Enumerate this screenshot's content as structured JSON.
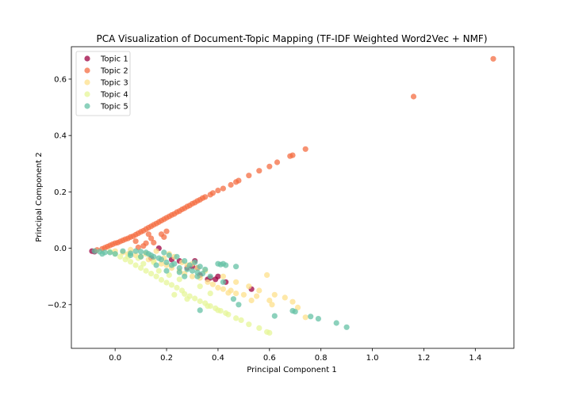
{
  "chart_data": {
    "type": "scatter",
    "title": "PCA Visualization of Document-Topic Mapping (TF-IDF Weighted Word2Vec + NMF)",
    "xlabel": "Principal Component 1",
    "ylabel": "Principal Component 2",
    "xlim": [
      -0.17,
      1.55
    ],
    "ylim": [
      -0.355,
      0.715
    ],
    "xticks": [
      0.0,
      0.2,
      0.4,
      0.6,
      0.8,
      1.0,
      1.2,
      1.4
    ],
    "xtick_labels": [
      "0.0",
      "0.2",
      "0.4",
      "0.6",
      "0.8",
      "1.0",
      "1.2",
      "1.4"
    ],
    "yticks": [
      -0.2,
      0.0,
      0.2,
      0.4,
      0.6
    ],
    "ytick_labels": [
      "−0.2",
      "0.0",
      "0.2",
      "0.4",
      "0.6"
    ],
    "grid": false,
    "legend_position": "top-left",
    "series": [
      {
        "name": "Topic 1",
        "color": "#9e0142",
        "points": [
          [
            -0.09,
            -0.01
          ],
          [
            -0.08,
            -0.012
          ],
          [
            0.17,
            0.0
          ],
          [
            0.14,
            -0.035
          ],
          [
            0.25,
            -0.045
          ],
          [
            0.3,
            -0.065
          ],
          [
            0.32,
            -0.07
          ],
          [
            0.33,
            -0.095
          ],
          [
            0.37,
            -0.105
          ],
          [
            0.4,
            -0.1
          ],
          [
            0.43,
            -0.12
          ],
          [
            0.39,
            -0.11
          ],
          [
            0.36,
            -0.11
          ],
          [
            0.53,
            -0.145
          ],
          [
            0.31,
            -0.045
          ],
          [
            0.28,
            -0.07
          ],
          [
            0.22,
            -0.04
          ]
        ]
      },
      {
        "name": "Topic 2",
        "color": "#f46d43",
        "points": [
          [
            1.47,
            0.672
          ],
          [
            1.16,
            0.538
          ],
          [
            0.74,
            0.352
          ],
          [
            0.69,
            0.33
          ],
          [
            0.68,
            0.327
          ],
          [
            0.63,
            0.305
          ],
          [
            0.6,
            0.29
          ],
          [
            0.56,
            0.275
          ],
          [
            0.52,
            0.258
          ],
          [
            0.48,
            0.24
          ],
          [
            0.47,
            0.235
          ],
          [
            0.45,
            0.225
          ],
          [
            0.42,
            0.212
          ],
          [
            0.4,
            0.205
          ],
          [
            0.38,
            0.196
          ],
          [
            0.37,
            0.19
          ],
          [
            0.35,
            0.182
          ],
          [
            0.34,
            0.178
          ],
          [
            0.33,
            0.172
          ],
          [
            0.32,
            0.168
          ],
          [
            0.31,
            0.162
          ],
          [
            0.3,
            0.158
          ],
          [
            0.29,
            0.152
          ],
          [
            0.28,
            0.148
          ],
          [
            0.27,
            0.142
          ],
          [
            0.26,
            0.138
          ],
          [
            0.25,
            0.132
          ],
          [
            0.24,
            0.128
          ],
          [
            0.23,
            0.122
          ],
          [
            0.22,
            0.118
          ],
          [
            0.21,
            0.113
          ],
          [
            0.2,
            0.108
          ],
          [
            0.19,
            0.103
          ],
          [
            0.18,
            0.098
          ],
          [
            0.17,
            0.093
          ],
          [
            0.16,
            0.088
          ],
          [
            0.15,
            0.083
          ],
          [
            0.14,
            0.078
          ],
          [
            0.13,
            0.073
          ],
          [
            0.12,
            0.068
          ],
          [
            0.11,
            0.062
          ],
          [
            0.1,
            0.058
          ],
          [
            0.09,
            0.053
          ],
          [
            0.08,
            0.048
          ],
          [
            0.07,
            0.043
          ],
          [
            0.06,
            0.04
          ],
          [
            0.05,
            0.035
          ],
          [
            0.04,
            0.032
          ],
          [
            0.03,
            0.028
          ],
          [
            0.02,
            0.024
          ],
          [
            0.01,
            0.02
          ],
          [
            0.0,
            0.018
          ],
          [
            -0.01,
            0.014
          ],
          [
            -0.02,
            0.01
          ],
          [
            -0.03,
            0.006
          ],
          [
            -0.04,
            0.002
          ],
          [
            -0.05,
            -0.002
          ],
          [
            -0.07,
            -0.006
          ],
          [
            0.2,
            0.06
          ],
          [
            0.19,
            0.04
          ],
          [
            0.14,
            0.035
          ],
          [
            0.15,
            0.02
          ],
          [
            0.12,
            0.018
          ],
          [
            0.11,
            0.008
          ],
          [
            0.09,
            0.003
          ],
          [
            0.13,
            0.05
          ],
          [
            0.18,
            0.05
          ],
          [
            0.08,
            0.025
          ]
        ]
      },
      {
        "name": "Topic 3",
        "color": "#fee08b",
        "points": [
          [
            0.74,
            -0.245
          ],
          [
            0.6,
            -0.185
          ],
          [
            0.61,
            -0.2
          ],
          [
            0.55,
            -0.17
          ],
          [
            0.53,
            -0.185
          ],
          [
            0.5,
            -0.165
          ],
          [
            0.47,
            -0.16
          ],
          [
            0.45,
            -0.15
          ],
          [
            0.44,
            -0.158
          ],
          [
            0.42,
            -0.145
          ],
          [
            0.4,
            -0.14
          ],
          [
            0.38,
            -0.128
          ],
          [
            0.36,
            -0.12
          ],
          [
            0.33,
            -0.105
          ],
          [
            0.3,
            -0.1
          ],
          [
            0.27,
            -0.09
          ],
          [
            0.25,
            -0.08
          ],
          [
            0.22,
            -0.07
          ],
          [
            0.2,
            -0.06
          ],
          [
            0.18,
            -0.055
          ],
          [
            0.15,
            -0.045
          ],
          [
            0.13,
            -0.04
          ],
          [
            0.1,
            -0.03
          ],
          [
            0.08,
            -0.025
          ],
          [
            0.05,
            -0.02
          ],
          [
            0.03,
            -0.015
          ],
          [
            0.0,
            -0.01
          ],
          [
            0.21,
            -0.02
          ],
          [
            0.23,
            -0.03
          ],
          [
            0.19,
            -0.035
          ],
          [
            0.26,
            -0.05
          ],
          [
            0.28,
            -0.06
          ],
          [
            0.16,
            -0.01
          ],
          [
            0.12,
            -0.02
          ],
          [
            0.06,
            -0.005
          ],
          [
            0.35,
            -0.08
          ],
          [
            0.32,
            -0.07
          ],
          [
            0.3,
            -0.055
          ],
          [
            0.42,
            -0.1
          ],
          [
            0.47,
            -0.12
          ],
          [
            0.52,
            -0.135
          ],
          [
            0.56,
            -0.15
          ],
          [
            0.62,
            -0.165
          ],
          [
            0.59,
            -0.095
          ],
          [
            0.66,
            -0.175
          ],
          [
            0.69,
            -0.19
          ],
          [
            0.71,
            -0.21
          ]
        ]
      },
      {
        "name": "Topic 4",
        "color": "#e6f598",
        "points": [
          [
            0.6,
            -0.3
          ],
          [
            0.59,
            -0.297
          ],
          [
            0.56,
            -0.283
          ],
          [
            0.52,
            -0.27
          ],
          [
            0.49,
            -0.255
          ],
          [
            0.47,
            -0.248
          ],
          [
            0.44,
            -0.235
          ],
          [
            0.43,
            -0.23
          ],
          [
            0.41,
            -0.222
          ],
          [
            0.39,
            -0.213
          ],
          [
            0.37,
            -0.205
          ],
          [
            0.35,
            -0.195
          ],
          [
            0.33,
            -0.188
          ],
          [
            0.31,
            -0.178
          ],
          [
            0.29,
            -0.17
          ],
          [
            0.27,
            -0.162
          ],
          [
            0.26,
            -0.15
          ],
          [
            0.24,
            -0.14
          ],
          [
            0.22,
            -0.13
          ],
          [
            0.2,
            -0.122
          ],
          [
            0.18,
            -0.112
          ],
          [
            0.16,
            -0.1
          ],
          [
            0.14,
            -0.09
          ],
          [
            0.12,
            -0.08
          ],
          [
            0.1,
            -0.07
          ],
          [
            0.08,
            -0.06
          ],
          [
            0.06,
            -0.048
          ],
          [
            0.04,
            -0.04
          ],
          [
            0.02,
            -0.03
          ],
          [
            0.0,
            -0.02
          ],
          [
            -0.02,
            -0.012
          ],
          [
            0.05,
            -0.03
          ],
          [
            0.11,
            -0.055
          ],
          [
            0.17,
            -0.08
          ],
          [
            0.21,
            -0.095
          ],
          [
            0.25,
            -0.11
          ],
          [
            0.33,
            -0.135
          ],
          [
            0.37,
            -0.16
          ],
          [
            0.23,
            -0.165
          ],
          [
            0.28,
            -0.18
          ],
          [
            0.36,
            -0.205
          ],
          [
            0.4,
            -0.22
          ],
          [
            0.09,
            -0.035
          ],
          [
            0.15,
            -0.05
          ]
        ]
      },
      {
        "name": "Topic 5",
        "color": "#66c2a5",
        "points": [
          [
            0.9,
            -0.28
          ],
          [
            0.86,
            -0.265
          ],
          [
            0.79,
            -0.25
          ],
          [
            0.76,
            -0.242
          ],
          [
            0.7,
            -0.225
          ],
          [
            0.69,
            -0.222
          ],
          [
            0.48,
            -0.2
          ],
          [
            0.46,
            -0.18
          ],
          [
            0.47,
            -0.065
          ],
          [
            0.43,
            -0.06
          ],
          [
            0.41,
            -0.058
          ],
          [
            0.42,
            -0.055
          ],
          [
            0.4,
            -0.055
          ],
          [
            0.37,
            -0.1
          ],
          [
            0.34,
            -0.09
          ],
          [
            0.32,
            -0.085
          ],
          [
            0.3,
            -0.08
          ],
          [
            0.28,
            -0.075
          ],
          [
            0.25,
            -0.07
          ],
          [
            0.23,
            -0.055
          ],
          [
            0.22,
            -0.06
          ],
          [
            0.2,
            -0.05
          ],
          [
            0.18,
            -0.04
          ],
          [
            0.17,
            -0.035
          ],
          [
            0.15,
            -0.03
          ],
          [
            0.14,
            -0.025
          ],
          [
            0.13,
            -0.02
          ],
          [
            0.12,
            -0.015
          ],
          [
            0.1,
            -0.012
          ],
          [
            0.08,
            -0.01
          ],
          [
            0.06,
            -0.018
          ],
          [
            0.03,
            -0.01
          ],
          [
            0.0,
            -0.02
          ],
          [
            -0.02,
            -0.015
          ],
          [
            -0.04,
            -0.015
          ],
          [
            -0.06,
            -0.012
          ],
          [
            -0.08,
            -0.01
          ],
          [
            -0.05,
            -0.02
          ],
          [
            0.21,
            -0.025
          ],
          [
            0.19,
            -0.015
          ],
          [
            0.24,
            -0.03
          ],
          [
            0.27,
            -0.045
          ],
          [
            0.29,
            -0.06
          ],
          [
            0.31,
            -0.05
          ],
          [
            0.33,
            -0.065
          ],
          [
            0.35,
            -0.075
          ],
          [
            0.1,
            -0.03
          ],
          [
            0.06,
            -0.025
          ],
          [
            0.2,
            -0.08
          ],
          [
            0.25,
            -0.085
          ],
          [
            0.27,
            -0.1
          ],
          [
            0.16,
            -0.06
          ],
          [
            0.32,
            -0.1
          ],
          [
            0.42,
            -0.12
          ],
          [
            0.33,
            -0.22
          ],
          [
            0.62,
            -0.24
          ]
        ]
      }
    ]
  }
}
